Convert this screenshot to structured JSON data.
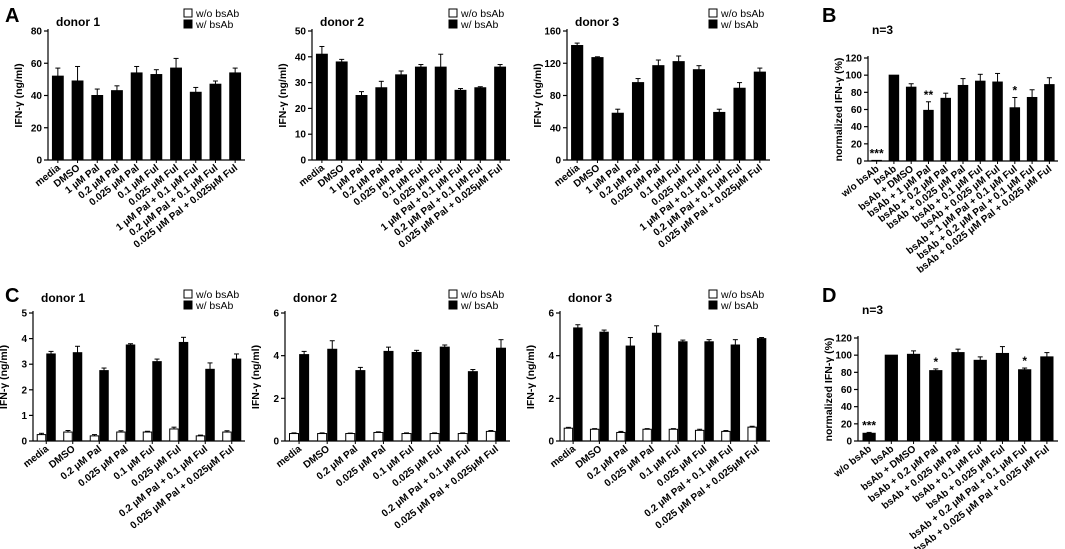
{
  "figure": {
    "panels": [
      "A",
      "B",
      "C",
      "D"
    ]
  },
  "legend": {
    "without": "w/o bsAb",
    "with": "w/ bsAb"
  },
  "chart_data": [
    {
      "id": "A1",
      "type": "bar",
      "panel": "A",
      "title": "donor 1",
      "ylabel": "IFN-γ (ng/ml)",
      "ylim": [
        0,
        80
      ],
      "yticks": [
        0,
        20,
        40,
        60,
        80
      ],
      "legend": true,
      "grouped": false,
      "categories": [
        "media",
        "DMSO",
        "1 μM Pal",
        "0.2 μM Pal",
        "0.025 μM Pal",
        "0.1 μM Ful",
        "0.025 μM Ful",
        "1 μM Pal + 0.1 μM Ful",
        "0.2 μM Pal + 0.1 μM Ful",
        "0.025 μM Pal + 0.025μM Ful"
      ],
      "series": [
        {
          "name": "w/ bsAb",
          "values": [
            52,
            49,
            40,
            43,
            54,
            53,
            57,
            42,
            47,
            54
          ],
          "errors": [
            5,
            9,
            4,
            3,
            4,
            3,
            6,
            3,
            2,
            3
          ]
        }
      ],
      "stars": []
    },
    {
      "id": "A2",
      "type": "bar",
      "panel": "",
      "title": "donor 2",
      "ylabel": "IFN-γ (ng/ml)",
      "ylim": [
        0,
        50
      ],
      "yticks": [
        0,
        10,
        20,
        30,
        40,
        50
      ],
      "legend": true,
      "grouped": false,
      "categories": [
        "media",
        "DMSO",
        "1 μM Pal",
        "0.2 μM Pal",
        "0.025 μM Pal",
        "0.1 μM Ful",
        "0.025 μM Ful",
        "1 μM Pal + 0.1 μM Ful",
        "0.2 μM Pal + 0.1 μM Ful",
        "0.025 μM Pal + 0.025μM Ful"
      ],
      "series": [
        {
          "name": "w/ bsAb",
          "values": [
            41,
            38,
            25,
            28,
            33,
            36,
            36,
            27,
            28,
            36
          ],
          "errors": [
            3,
            1,
            1.5,
            2.5,
            1.5,
            1,
            5,
            0.7,
            0.4,
            1
          ]
        }
      ],
      "stars": []
    },
    {
      "id": "A3",
      "type": "bar",
      "panel": "",
      "title": "donor 3",
      "ylabel": "IFN-γ (ng/ml)",
      "ylim": [
        0,
        160
      ],
      "yticks": [
        0,
        40,
        80,
        120,
        160
      ],
      "legend": true,
      "grouped": false,
      "categories": [
        "media",
        "DMSO",
        "1 μM Pal",
        "0.2 μM Pal",
        "0.025 μM Pal",
        "0.1 μM Ful",
        "0.025 μM Ful",
        "1 μM Pal + 0.1 μM Ful",
        "0.2 μM Pal + 0.1 μM Ful",
        "0.025 μM Pal + 0.025μM Ful"
      ],
      "series": [
        {
          "name": "w/ bsAb",
          "values": [
            142,
            127,
            58,
            96,
            117,
            122,
            112,
            59,
            89,
            109
          ],
          "errors": [
            3,
            1,
            5,
            5,
            7,
            7,
            5,
            4,
            7,
            5
          ]
        }
      ],
      "stars": []
    },
    {
      "id": "B",
      "type": "bar",
      "panel": "B",
      "title": "n=3",
      "ylabel": "normalized IFN-γ (%)",
      "ylim": [
        0,
        120
      ],
      "yticks": [
        0,
        20,
        40,
        60,
        80,
        100,
        120
      ],
      "legend": false,
      "grouped": false,
      "categories": [
        "w/o bsAb",
        "bsAb",
        "bsAb + DMSO",
        "bsAb + 1 μM Pal",
        "bsAb + 0.2 μM Pal",
        "bsAb + 0.025 μM Pal",
        "bsAb + 0.1 μM Ful",
        "bsAb + 0.025 μM Ful",
        "bsAb + 1 μM Pal + 0.1 μM Ful",
        "bsAb + 0.2 μM Pal + 0.1 μM Ful",
        "bsAb + 0.025 μM Pal + 0.025 μM Ful"
      ],
      "series": [
        {
          "name": "normalized",
          "values": [
            0.5,
            100,
            86,
            59,
            73,
            88,
            93,
            92,
            62,
            74,
            89
          ],
          "errors": [
            0,
            0,
            4,
            10,
            6,
            8,
            8,
            10,
            12,
            9,
            8
          ]
        }
      ],
      "stars": [
        {
          "index": 0,
          "text": "***"
        },
        {
          "index": 3,
          "text": "**"
        },
        {
          "index": 8,
          "text": "*"
        }
      ]
    },
    {
      "id": "C1",
      "type": "bar",
      "panel": "C",
      "title": "donor 1",
      "ylabel": "IFN-γ (ng/ml)",
      "ylim": [
        0,
        5
      ],
      "yticks": [
        0,
        1,
        2,
        3,
        4,
        5
      ],
      "legend": true,
      "grouped": true,
      "categories": [
        "media",
        "DMSO",
        "0.2 μM Pal",
        "0.025 μM Pal",
        "0.1 μM Ful",
        "0.025 μM Ful",
        "0.2 μM Pal + 0.1 μM Ful",
        "0.025 μM Pal + 0.025μM Ful"
      ],
      "series": [
        {
          "name": "w/o bsAb",
          "values": [
            0.25,
            0.35,
            0.2,
            0.35,
            0.35,
            0.47,
            0.2,
            0.35
          ],
          "errors": [
            0.05,
            0.06,
            0.05,
            0.05,
            0.03,
            0.07,
            0.03,
            0.05
          ]
        },
        {
          "name": "w/ bsAb",
          "values": [
            3.4,
            3.45,
            2.75,
            3.75,
            3.1,
            3.85,
            2.8,
            3.2
          ],
          "errors": [
            0.1,
            0.25,
            0.1,
            0.05,
            0.1,
            0.2,
            0.25,
            0.2
          ]
        }
      ],
      "stars": []
    },
    {
      "id": "C2",
      "type": "bar",
      "panel": "",
      "title": "donor 2",
      "ylabel": "IFN-γ (ng/ml)",
      "ylim": [
        0,
        6
      ],
      "yticks": [
        0,
        2,
        4,
        6
      ],
      "legend": true,
      "grouped": true,
      "categories": [
        "media",
        "DMSO",
        "0.2 μM Pal",
        "0.025 μM Pal",
        "0.1 μM Ful",
        "0.025 μM Ful",
        "0.2 μM Pal + 0.1 μM Ful",
        "0.025 μM Pal + 0.025μM Ful"
      ],
      "series": [
        {
          "name": "w/o bsAb",
          "values": [
            0.35,
            0.35,
            0.35,
            0.4,
            0.35,
            0.35,
            0.35,
            0.45
          ],
          "errors": [
            0.03,
            0.03,
            0.02,
            0.03,
            0.03,
            0.03,
            0.03,
            0.04
          ]
        },
        {
          "name": "w/ bsAb",
          "values": [
            4.05,
            4.3,
            3.3,
            4.2,
            4.15,
            4.4,
            3.25,
            4.35
          ],
          "errors": [
            0.15,
            0.4,
            0.15,
            0.2,
            0.1,
            0.1,
            0.1,
            0.4
          ]
        }
      ],
      "stars": []
    },
    {
      "id": "C3",
      "type": "bar",
      "panel": "",
      "title": "donor 3",
      "ylabel": "IFN-γ (ng/ml)",
      "ylim": [
        0,
        6
      ],
      "yticks": [
        0,
        2,
        4,
        6
      ],
      "legend": true,
      "grouped": true,
      "categories": [
        "media",
        "DMSO",
        "0.2 μM Pal",
        "0.025 μM Pal",
        "0.1 μM Ful",
        "0.025 μM Ful",
        "0.2 μM Pal + 0.1 μM Ful",
        "0.025 μM Pal + 0.025μM Ful"
      ],
      "series": [
        {
          "name": "w/o bsAb",
          "values": [
            0.6,
            0.55,
            0.4,
            0.55,
            0.55,
            0.5,
            0.45,
            0.65
          ],
          "errors": [
            0.04,
            0.03,
            0.05,
            0.03,
            0.03,
            0.05,
            0.04,
            0.04
          ]
        },
        {
          "name": "w/ bsAb",
          "values": [
            5.3,
            5.1,
            4.45,
            5.05,
            4.65,
            4.65,
            4.5,
            4.8
          ],
          "errors": [
            0.15,
            0.1,
            0.4,
            0.35,
            0.08,
            0.1,
            0.25,
            0.05
          ]
        }
      ],
      "stars": []
    },
    {
      "id": "D",
      "type": "bar",
      "panel": "D",
      "title": "n=3",
      "ylabel": "normalized IFN-γ (%)",
      "ylim": [
        0,
        120
      ],
      "yticks": [
        0,
        20,
        40,
        60,
        80,
        100,
        120
      ],
      "legend": false,
      "grouped": false,
      "categories": [
        "w/o bsAb",
        "bsAb",
        "bsAb + DMSO",
        "bsAb + 0.2 μM Pal",
        "bsAb + 0.025 μM Pal",
        "bsAb + 0.1 μM Ful",
        "bsAb + 0.025 μM Ful",
        "bsAb + 0.2 μM Pal + 0.1 μM Ful",
        "bsAb + 0.025 μM Pal + 0.025 μM Ful"
      ],
      "series": [
        {
          "name": "normalized",
          "values": [
            9,
            100,
            101,
            82,
            103,
            94,
            102,
            83,
            98
          ],
          "errors": [
            1,
            0,
            4,
            2,
            4,
            4,
            8,
            2,
            5
          ]
        }
      ],
      "stars": [
        {
          "index": 0,
          "text": "***"
        },
        {
          "index": 3,
          "text": "*"
        },
        {
          "index": 7,
          "text": "*"
        }
      ]
    }
  ]
}
